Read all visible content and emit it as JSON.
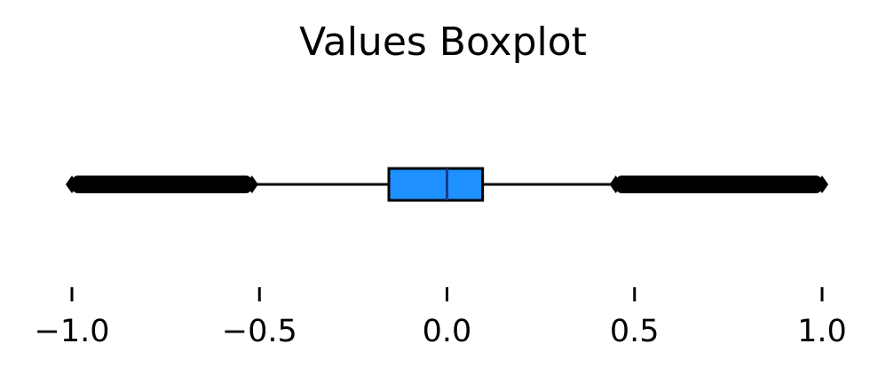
{
  "chart_data": {
    "type": "boxplot",
    "title": "Values Boxplot",
    "orientation": "horizontal",
    "xlim": [
      -1.02,
      1.02
    ],
    "xticks": [
      -1.0,
      -0.5,
      0.0,
      0.5,
      1.0
    ],
    "xtick_labels": [
      "−1.0",
      "−0.5",
      "0.0",
      "0.5",
      "1.0"
    ],
    "box": {
      "whisker_low": -0.52,
      "q1": -0.155,
      "median": 0.0,
      "q3": 0.095,
      "whisker_high": 0.45
    },
    "outliers": [
      {
        "from": -1.0,
        "to": -0.52
      },
      {
        "from": 0.45,
        "to": 1.0
      }
    ],
    "colors": {
      "box_fill": "#1e90ff",
      "box_edge": "#000000",
      "median": "#1a3a8a",
      "whisker": "#000000",
      "outlier": "#000000"
    },
    "grid": false
  }
}
